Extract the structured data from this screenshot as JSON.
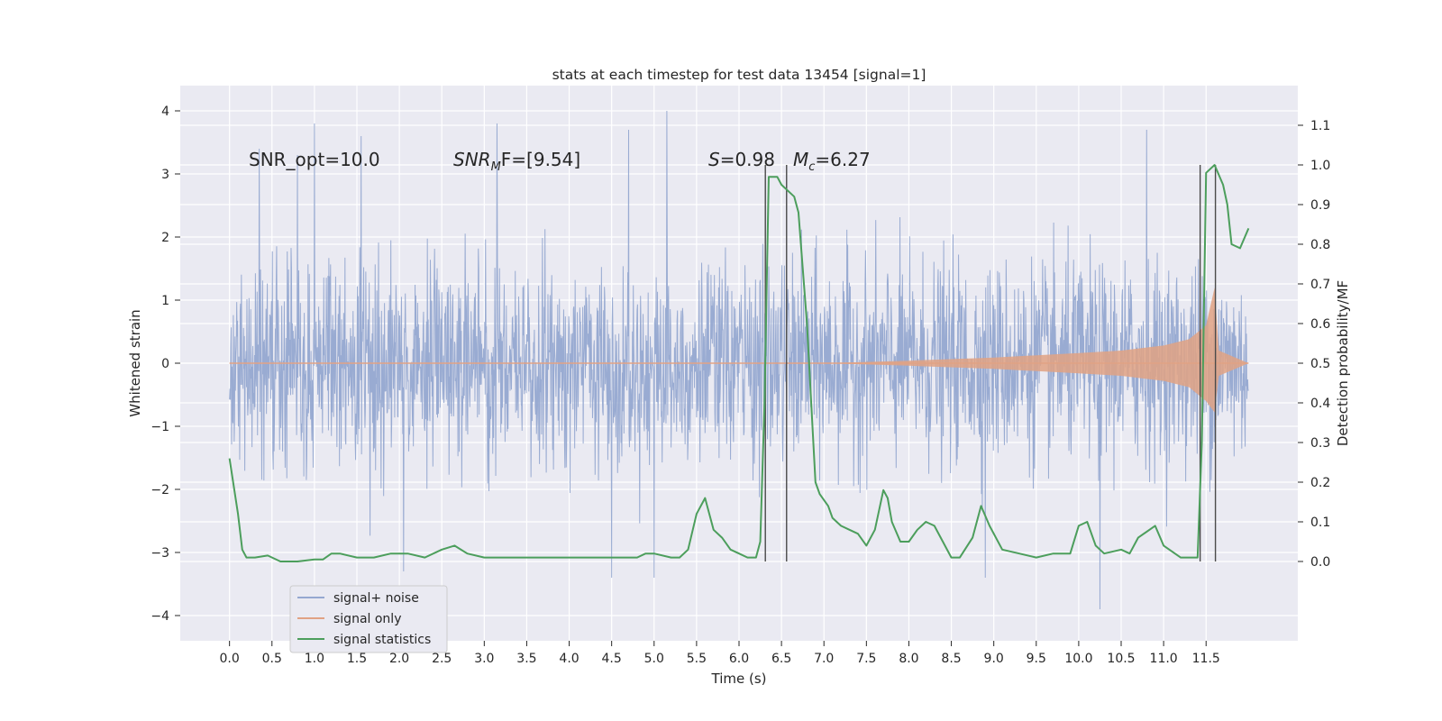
{
  "chart_data": {
    "type": "line",
    "title": "stats at each timestep for test data 13454 [signal=1]",
    "xlabel": "Time (s)",
    "ylabel": "Whitened strain",
    "ylabel_right": "Detection probability/MF",
    "xlim": [
      -0.58,
      12.58
    ],
    "ylim": [
      -4.4,
      4.4
    ],
    "ylim_right": [
      -0.2,
      1.2
    ],
    "x_ticks": [
      "0.0",
      "0.5",
      "1.0",
      "1.5",
      "2.0",
      "2.5",
      "3.0",
      "3.5",
      "4.0",
      "4.5",
      "5.0",
      "5.5",
      "6.0",
      "6.5",
      "7.0",
      "7.5",
      "8.0",
      "8.5",
      "9.0",
      "9.5",
      "10.0",
      "10.5",
      "11.0",
      "11.5"
    ],
    "y_ticks": [
      "4",
      "3",
      "2",
      "1",
      "0",
      "−1",
      "−2",
      "−3",
      "−4"
    ],
    "y_ticks_right": [
      "1.1",
      "1.0",
      "0.9",
      "0.8",
      "0.7",
      "0.6",
      "0.5",
      "0.4",
      "0.3",
      "0.2",
      "0.1",
      "0.0"
    ],
    "annotations": {
      "snr_opt": "SNR_opt=10.0",
      "snr_mf_name": "SNR",
      "snr_mf_sub": "M",
      "snr_mf_rest": "F=[9.54]",
      "s_name": "S",
      "s_value": "=0.98",
      "mc_name": "M",
      "mc_sub": "c",
      "mc_value": "=6.27"
    },
    "vlines": [
      6.31,
      6.56,
      11.43,
      11.61
    ],
    "series": [
      {
        "name": "signal+ noise",
        "color": "#95a8d0",
        "description": "whitened strain noise, 0 to 12 s, typical amplitude about ±1.3 with spikes up to about 4.1 and down to about -3.9",
        "x_range": [
          0.0,
          12.0
        ],
        "peaks": [
          {
            "x": 0.35,
            "y": 3.4
          },
          {
            "x": 0.8,
            "y": 3.3
          },
          {
            "x": 1.0,
            "y": 3.8
          },
          {
            "x": 1.55,
            "y": 3.6
          },
          {
            "x": 2.05,
            "y": 4.1
          },
          {
            "x": 3.15,
            "y": 3.8
          },
          {
            "x": 4.7,
            "y": 3.7
          },
          {
            "x": 5.15,
            "y": 4.0
          },
          {
            "x": 10.8,
            "y": 3.7
          },
          {
            "x": 10.25,
            "y": -3.9
          },
          {
            "x": 4.5,
            "y": -3.4
          },
          {
            "x": 2.05,
            "y": -3.3
          },
          {
            "x": 5.0,
            "y": -3.4
          },
          {
            "x": 8.9,
            "y": -3.4
          }
        ]
      },
      {
        "name": "signal only",
        "color": "#e1a284",
        "description": "chirp signal, envelope amplitude growing from 0 near 7.0 s to about 1.2 at 11.6 s, then ending",
        "envelope": [
          {
            "t": 7.0,
            "a": 0.0
          },
          {
            "t": 8.0,
            "a": 0.04
          },
          {
            "t": 9.0,
            "a": 0.09
          },
          {
            "t": 10.0,
            "a": 0.16
          },
          {
            "t": 10.5,
            "a": 0.2
          },
          {
            "t": 11.0,
            "a": 0.28
          },
          {
            "t": 11.3,
            "a": 0.38
          },
          {
            "t": 11.5,
            "a": 0.6
          },
          {
            "t": 11.6,
            "a": 1.2
          },
          {
            "t": 11.65,
            "a": 0.2
          },
          {
            "t": 12.0,
            "a": 0.0
          }
        ]
      },
      {
        "name": "signal statistics",
        "color": "#4c9e5c",
        "axis": "right",
        "x": [
          0.0,
          0.1,
          0.15,
          0.2,
          0.3,
          0.45,
          0.6,
          0.8,
          1.0,
          1.1,
          1.2,
          1.3,
          1.5,
          1.7,
          1.9,
          2.1,
          2.3,
          2.5,
          2.65,
          2.8,
          3.0,
          3.2,
          3.4,
          3.6,
          3.8,
          4.0,
          4.2,
          4.4,
          4.6,
          4.8,
          4.9,
          5.0,
          5.2,
          5.3,
          5.4,
          5.5,
          5.6,
          5.7,
          5.8,
          5.9,
          6.0,
          6.1,
          6.2,
          6.25,
          6.3,
          6.35,
          6.45,
          6.5,
          6.6,
          6.65,
          6.7,
          6.8,
          6.85,
          6.9,
          6.95,
          7.05,
          7.1,
          7.2,
          7.3,
          7.4,
          7.5,
          7.6,
          7.7,
          7.75,
          7.8,
          7.9,
          8.0,
          8.1,
          8.2,
          8.3,
          8.4,
          8.5,
          8.6,
          8.75,
          8.85,
          8.95,
          9.1,
          9.3,
          9.5,
          9.7,
          9.9,
          10.0,
          10.1,
          10.2,
          10.3,
          10.5,
          10.6,
          10.7,
          10.9,
          11.0,
          11.2,
          11.4,
          11.45,
          11.5,
          11.6,
          11.7,
          11.75,
          11.8,
          11.9,
          12.0
        ],
        "values": [
          0.26,
          0.12,
          0.03,
          0.01,
          0.01,
          0.015,
          0.0,
          0.0,
          0.005,
          0.005,
          0.02,
          0.02,
          0.01,
          0.01,
          0.02,
          0.02,
          0.01,
          0.03,
          0.04,
          0.02,
          0.01,
          0.01,
          0.01,
          0.01,
          0.01,
          0.01,
          0.01,
          0.01,
          0.01,
          0.01,
          0.02,
          0.02,
          0.01,
          0.01,
          0.03,
          0.12,
          0.16,
          0.08,
          0.06,
          0.03,
          0.02,
          0.01,
          0.01,
          0.05,
          0.4,
          0.97,
          0.97,
          0.95,
          0.93,
          0.92,
          0.88,
          0.6,
          0.4,
          0.2,
          0.17,
          0.14,
          0.11,
          0.09,
          0.08,
          0.07,
          0.04,
          0.08,
          0.18,
          0.16,
          0.1,
          0.05,
          0.05,
          0.08,
          0.1,
          0.09,
          0.05,
          0.01,
          0.01,
          0.06,
          0.14,
          0.09,
          0.03,
          0.02,
          0.01,
          0.02,
          0.02,
          0.09,
          0.1,
          0.04,
          0.02,
          0.03,
          0.02,
          0.06,
          0.09,
          0.04,
          0.01,
          0.01,
          0.3,
          0.98,
          1.0,
          0.95,
          0.9,
          0.8,
          0.79,
          0.84
        ]
      }
    ],
    "legend": [
      "signal+ noise",
      "signal only",
      "signal statistics"
    ],
    "legend_position": "lower-left",
    "grid": true
  }
}
